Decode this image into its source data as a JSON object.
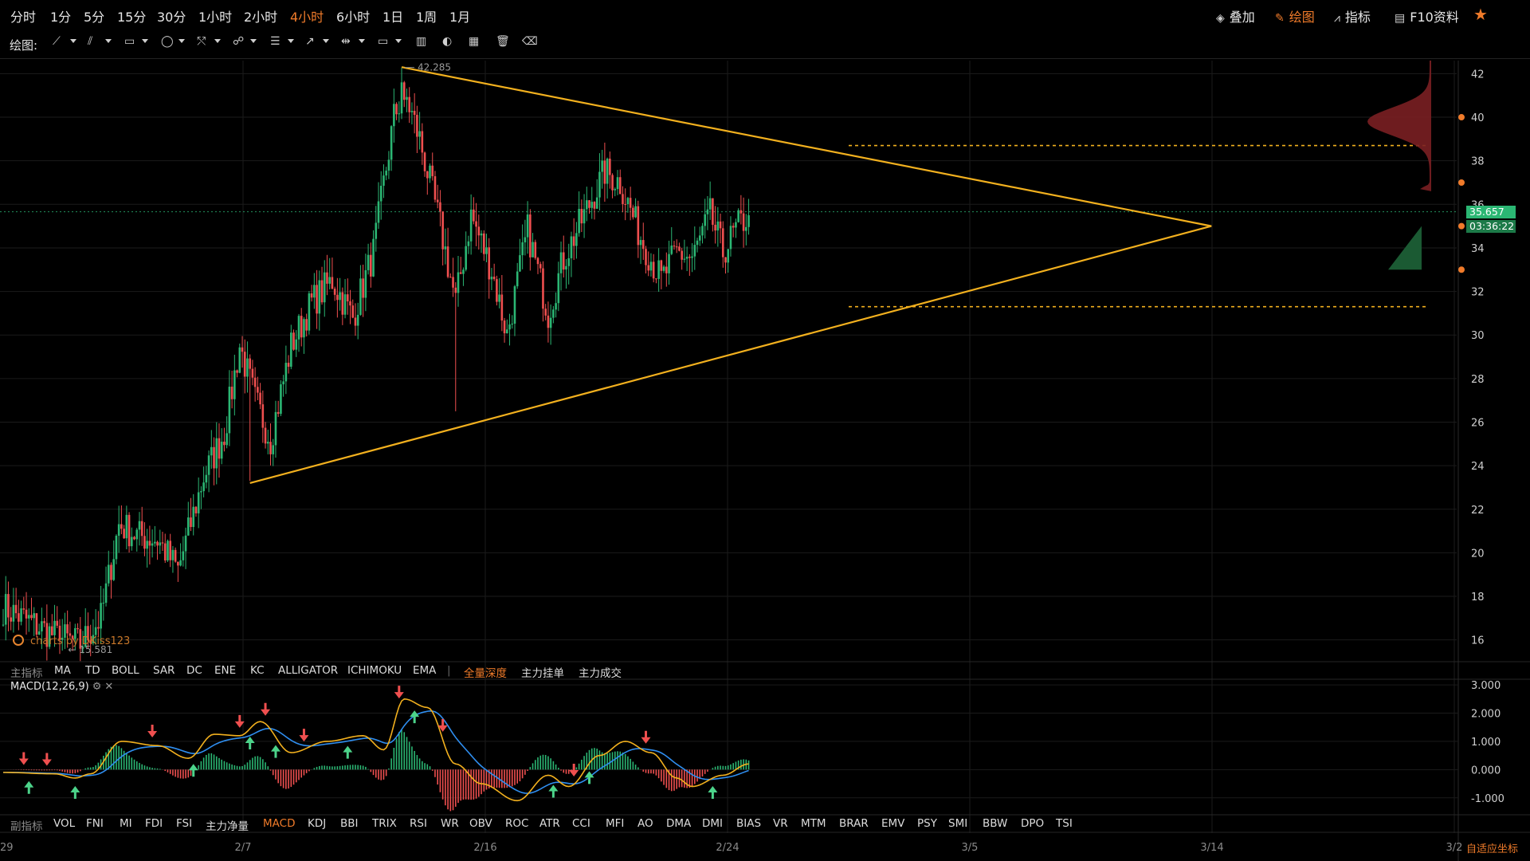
{
  "toolbar": {
    "timeframes": [
      {
        "label": "分时",
        "active": false
      },
      {
        "label": "1分",
        "active": false
      },
      {
        "label": "5分",
        "active": false
      },
      {
        "label": "15分",
        "active": false
      },
      {
        "label": "30分",
        "active": false
      },
      {
        "label": "1小时",
        "active": false
      },
      {
        "label": "2小时",
        "active": false
      },
      {
        "label": "4小时",
        "active": true
      },
      {
        "label": "6小时",
        "active": false
      },
      {
        "label": "1日",
        "active": false
      },
      {
        "label": "1周",
        "active": false
      },
      {
        "label": "1月",
        "active": false
      }
    ],
    "right": {
      "overlay_label": "叠加",
      "draw_label": "绘图",
      "indicator_label": "指标",
      "f10_label": "F10资料"
    },
    "accent_color": "#f07b2a"
  },
  "drawbar": {
    "label": "绘图:",
    "tools": [
      {
        "icon": "trend-line-icon",
        "has_menu": true
      },
      {
        "icon": "parallel-channel-icon",
        "has_menu": true
      },
      {
        "icon": "rectangle-icon",
        "has_menu": true
      },
      {
        "icon": "circle-icon",
        "has_menu": true
      },
      {
        "icon": "fibonacci-icon",
        "has_menu": true
      },
      {
        "icon": "pattern-icon",
        "has_menu": true
      },
      {
        "icon": "text-lines-icon",
        "has_menu": true
      },
      {
        "icon": "arrow-icon",
        "has_menu": true
      },
      {
        "icon": "measure-icon",
        "has_menu": true
      },
      {
        "icon": "comment-icon",
        "has_menu": true
      }
    ],
    "actions": [
      "candle-style-icon",
      "magnet-icon",
      "bar-chart-icon",
      "trash-icon",
      "eraser-icon"
    ]
  },
  "main_indicators": {
    "label": "主指标",
    "items": [
      "MA",
      "TD",
      "BOLL",
      "SAR",
      "DC",
      "ENE",
      "KC",
      "ALLIGATOR",
      "ICHIMOKU",
      "EMA"
    ],
    "separator": "|",
    "extras": [
      {
        "label": "全量深度",
        "active": true
      },
      {
        "label": "主力挂单",
        "active": false
      },
      {
        "label": "主力成交",
        "active": false
      }
    ]
  },
  "sub_indicators": {
    "label": "副指标",
    "items": [
      {
        "label": "VOL",
        "active": false
      },
      {
        "label": "FNI",
        "active": false
      },
      {
        "label": "MI",
        "active": false
      },
      {
        "label": "FDI",
        "active": false
      },
      {
        "label": "FSI",
        "active": false
      },
      {
        "label": "主力净量",
        "active": false
      },
      {
        "label": "MACD",
        "active": true
      },
      {
        "label": "KDJ",
        "active": false
      },
      {
        "label": "BBI",
        "active": false
      },
      {
        "label": "TRIX",
        "active": false
      },
      {
        "label": "RSI",
        "active": false
      },
      {
        "label": "WR",
        "active": false
      },
      {
        "label": "OBV",
        "active": false
      },
      {
        "label": "ROC",
        "active": false
      },
      {
        "label": "ATR",
        "active": false
      },
      {
        "label": "CCI",
        "active": false
      },
      {
        "label": "MFI",
        "active": false
      },
      {
        "label": "AO",
        "active": false
      },
      {
        "label": "DMA",
        "active": false
      },
      {
        "label": "DMI",
        "active": false
      },
      {
        "label": "BIAS",
        "active": false
      },
      {
        "label": "VR",
        "active": false
      },
      {
        "label": "MTM",
        "active": false
      },
      {
        "label": "BRAR",
        "active": false
      },
      {
        "label": "EMV",
        "active": false
      },
      {
        "label": "PSY",
        "active": false
      },
      {
        "label": "SMI",
        "active": false
      },
      {
        "label": "BBW",
        "active": false
      },
      {
        "label": "DPO",
        "active": false
      },
      {
        "label": "TSI",
        "active": false
      }
    ]
  },
  "macd_panel": {
    "label": "MACD(12,26,9)",
    "settings_glyph": "⚙",
    "close_glyph": "✕"
  },
  "watermark": "charts by DKiss123",
  "bottom_right_label": "自适应坐标",
  "colors": {
    "up": "#2bb673",
    "down": "#ef4f4f",
    "trend": "#f2b01e",
    "dif": "#f2b01e",
    "dea": "#2f8ef0",
    "grid": "#1b1b1b"
  },
  "chart_data": [
    {
      "type": "candlestick",
      "title": "",
      "interval": "4小时",
      "x_ticks": [
        "29",
        "2/7",
        "2/16",
        "2/24",
        "3/5",
        "3/14",
        "3/2"
      ],
      "y_ticks": [
        16,
        18,
        20,
        22,
        24,
        26,
        28,
        30,
        32,
        34,
        36,
        38,
        40,
        42
      ],
      "ylim": [
        15.0,
        42.6
      ],
      "grid": true,
      "annotations": {
        "high": 42.285,
        "low": 15.581
      },
      "last_price": 35.657,
      "countdown": "03:36:22",
      "trend_lines": [
        {
          "name": "upper",
          "from": {
            "bar": 155,
            "price": 42.3
          },
          "to": {
            "bar": 470,
            "price": 35.0
          }
        },
        {
          "name": "lower",
          "from": {
            "bar": 96,
            "price": 23.2
          },
          "to": {
            "bar": 470,
            "price": 35.0
          }
        }
      ],
      "horizontal_levels": [
        38.7,
        31.3
      ],
      "depth_profile": {
        "sell_peak_price": 39.8,
        "buy_region": [
          33.0,
          35.0
        ]
      },
      "anchor_points": [
        {
          "bar": 0,
          "price": 17.5
        },
        {
          "bar": 20,
          "price": 16.2
        },
        {
          "bar": 30,
          "price": 15.8
        },
        {
          "bar": 38,
          "price": 17.0
        },
        {
          "bar": 45,
          "price": 21.3
        },
        {
          "bar": 52,
          "price": 20.8
        },
        {
          "bar": 60,
          "price": 20.6
        },
        {
          "bar": 68,
          "price": 19.2
        },
        {
          "bar": 78,
          "price": 23.5
        },
        {
          "bar": 86,
          "price": 25.5
        },
        {
          "bar": 92,
          "price": 29.5
        },
        {
          "bar": 98,
          "price": 27.0
        },
        {
          "bar": 104,
          "price": 25.2
        },
        {
          "bar": 112,
          "price": 29.5
        },
        {
          "bar": 120,
          "price": 31.5
        },
        {
          "bar": 128,
          "price": 32.5
        },
        {
          "bar": 136,
          "price": 30.8
        },
        {
          "bar": 144,
          "price": 33.8
        },
        {
          "bar": 152,
          "price": 40.0
        },
        {
          "bar": 156,
          "price": 41.2
        },
        {
          "bar": 162,
          "price": 39.0
        },
        {
          "bar": 170,
          "price": 35.0
        },
        {
          "bar": 176,
          "price": 31.5
        },
        {
          "bar": 182,
          "price": 35.5
        },
        {
          "bar": 190,
          "price": 33.0
        },
        {
          "bar": 196,
          "price": 30.0
        },
        {
          "bar": 204,
          "price": 34.8
        },
        {
          "bar": 212,
          "price": 31.0
        },
        {
          "bar": 218,
          "price": 33.5
        },
        {
          "bar": 226,
          "price": 35.5
        },
        {
          "bar": 234,
          "price": 37.5
        },
        {
          "bar": 240,
          "price": 37.0
        },
        {
          "bar": 248,
          "price": 34.5
        },
        {
          "bar": 256,
          "price": 32.5
        },
        {
          "bar": 262,
          "price": 33.8
        },
        {
          "bar": 268,
          "price": 33.5
        },
        {
          "bar": 275,
          "price": 35.5
        },
        {
          "bar": 280,
          "price": 33.8
        },
        {
          "bar": 286,
          "price": 35.0
        },
        {
          "bar": 290,
          "price": 35.5
        }
      ]
    },
    {
      "type": "macd",
      "title": "MACD(12,26,9)",
      "y_ticks": [
        "3.000",
        "2.000",
        "1.000",
        "0.000",
        "-1.000"
      ],
      "ylim": [
        -1.6,
        3.2
      ],
      "grid": true,
      "dif_anchors": [
        {
          "bar": 0,
          "value": -0.1
        },
        {
          "bar": 20,
          "value": -0.15
        },
        {
          "bar": 28,
          "value": -0.3
        },
        {
          "bar": 34,
          "value": -0.15
        },
        {
          "bar": 46,
          "value": 1.0
        },
        {
          "bar": 60,
          "value": 0.85
        },
        {
          "bar": 72,
          "value": 0.4
        },
        {
          "bar": 82,
          "value": 1.25
        },
        {
          "bar": 92,
          "value": 1.2
        },
        {
          "bar": 100,
          "value": 1.7
        },
        {
          "bar": 112,
          "value": 0.6
        },
        {
          "bar": 126,
          "value": 1.0
        },
        {
          "bar": 140,
          "value": 1.2
        },
        {
          "bar": 148,
          "value": 0.7
        },
        {
          "bar": 156,
          "value": 2.5
        },
        {
          "bar": 165,
          "value": 2.2
        },
        {
          "bar": 176,
          "value": 0.2
        },
        {
          "bar": 186,
          "value": -0.5
        },
        {
          "bar": 200,
          "value": -1.1
        },
        {
          "bar": 212,
          "value": -0.2
        },
        {
          "bar": 220,
          "value": -0.6
        },
        {
          "bar": 232,
          "value": 0.5
        },
        {
          "bar": 242,
          "value": 1.0
        },
        {
          "bar": 252,
          "value": 0.6
        },
        {
          "bar": 262,
          "value": -0.3
        },
        {
          "bar": 268,
          "value": -0.6
        },
        {
          "bar": 280,
          "value": -0.2
        },
        {
          "bar": 290,
          "value": 0.2
        }
      ],
      "sell_signal_bars": [
        8,
        17,
        58,
        92,
        102,
        117,
        154,
        171,
        222,
        250
      ],
      "buy_signal_bars": [
        10,
        28,
        74,
        96,
        106,
        134,
        160,
        214,
        228,
        276
      ]
    }
  ]
}
